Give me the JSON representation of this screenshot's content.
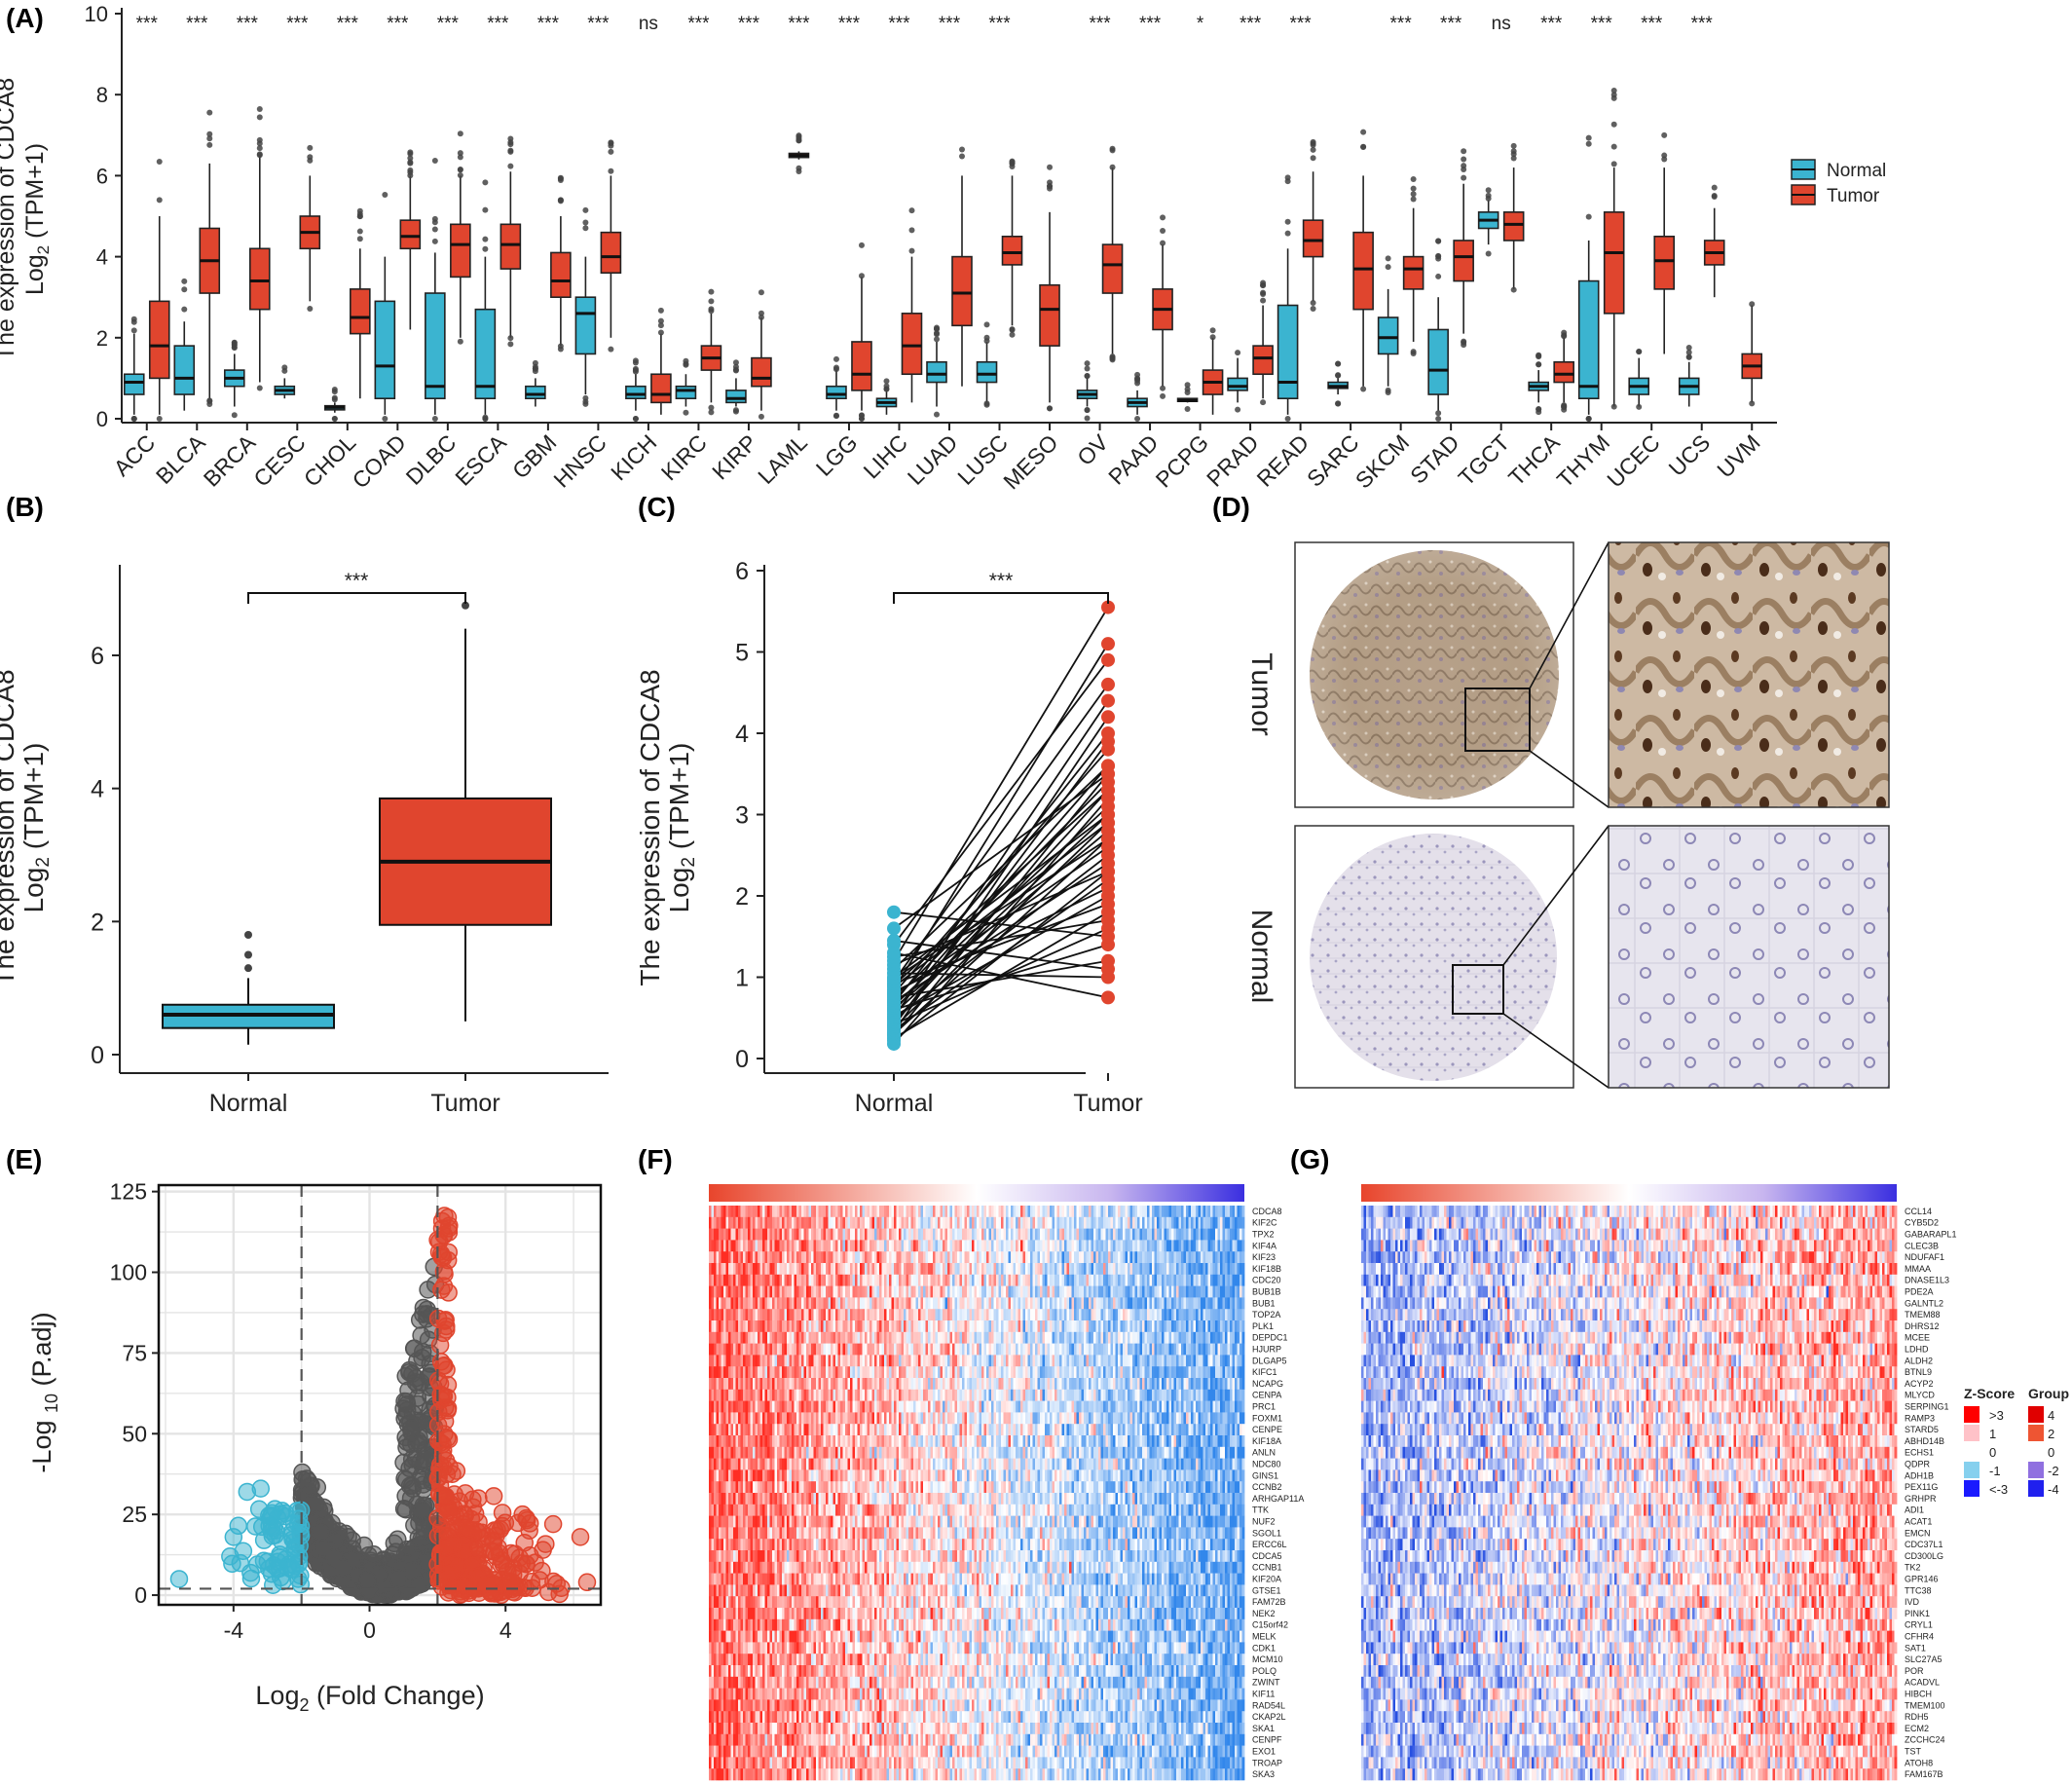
{
  "colors": {
    "normal": "#3bb4d0",
    "tumor": "#e0452e",
    "up": "#e0452e",
    "down": "#3bb4d0",
    "ns": "#555555"
  },
  "chart_data": [
    {
      "id": "A",
      "panel_label": "(A)",
      "type": "box",
      "ylabel_line1": "The expression of CDCA8",
      "ylabel_line2": "Log",
      "ylabel_sub": "2",
      "ylabel_rest": " (TPM+1)",
      "ylim": [
        0,
        10
      ],
      "yticks": [
        "0",
        "2",
        "4",
        "6",
        "8",
        "10"
      ],
      "legend": [
        {
          "name": "Normal"
        },
        {
          "name": "Tumor"
        }
      ],
      "categories": [
        "ACC",
        "BLCA",
        "BRCA",
        "CESC",
        "CHOL",
        "COAD",
        "DLBC",
        "ESCA",
        "GBM",
        "HNSC",
        "KICH",
        "KIRC",
        "KIRP",
        "LAML",
        "LGG",
        "LIHC",
        "LUAD",
        "LUSC",
        "MESO",
        "OV",
        "PAAD",
        "PCPG",
        "PRAD",
        "READ",
        "SARC",
        "SKCM",
        "STAD",
        "TGCT",
        "THCA",
        "THYM",
        "UCEC",
        "UCS",
        "UVM"
      ],
      "significance": [
        "***",
        "***",
        "***",
        "***",
        "***",
        "***",
        "***",
        "***",
        "***",
        "***",
        "ns",
        "***",
        "***",
        "***",
        "***",
        "***",
        "***",
        "***",
        "",
        "***",
        "***",
        "*",
        "***",
        "***",
        "",
        "***",
        "***",
        "ns",
        "***",
        "***",
        "***",
        "***",
        ""
      ],
      "normal": [
        [
          0.1,
          0.6,
          0.9,
          1.1,
          2.1
        ],
        [
          0.2,
          0.6,
          1.0,
          1.8,
          2.4
        ],
        [
          0.3,
          0.8,
          1.0,
          1.2,
          1.6
        ],
        [
          0.5,
          0.6,
          0.7,
          0.8,
          1.0
        ],
        [
          0.15,
          0.22,
          0.28,
          0.32,
          0.4
        ],
        [
          0.1,
          0.5,
          1.3,
          2.9,
          4.0
        ],
        [
          0.1,
          0.5,
          0.8,
          3.1,
          4.1
        ],
        [
          0.1,
          0.5,
          0.8,
          2.7,
          4.0
        ],
        [
          0.3,
          0.5,
          0.6,
          0.8,
          1.0
        ],
        [
          0.6,
          1.6,
          2.6,
          3.0,
          4.0
        ],
        [
          0.2,
          0.5,
          0.6,
          0.8,
          1.1
        ],
        [
          0.3,
          0.5,
          0.7,
          0.8,
          1.1
        ],
        [
          0.3,
          0.4,
          0.5,
          0.7,
          1.0
        ],
        null,
        [
          0.2,
          0.5,
          0.6,
          0.8,
          1.2
        ],
        [
          0.1,
          0.3,
          0.4,
          0.5,
          0.7
        ],
        [
          0.3,
          0.9,
          1.1,
          1.4,
          1.9
        ],
        [
          0.4,
          0.9,
          1.1,
          1.4,
          1.9
        ],
        null,
        [
          0.3,
          0.5,
          0.6,
          0.7,
          1.0
        ],
        [
          0.1,
          0.3,
          0.4,
          0.5,
          0.7
        ],
        [
          0.4,
          0.45,
          0.45,
          0.5,
          0.5
        ],
        [
          0.4,
          0.7,
          0.8,
          1.0,
          1.5
        ],
        [
          0.1,
          0.5,
          0.9,
          2.8,
          4.2
        ],
        [
          0.6,
          0.75,
          0.8,
          0.9,
          1.0
        ],
        [
          0.8,
          1.6,
          2.0,
          2.5,
          3.2
        ],
        [
          0.2,
          0.6,
          1.2,
          2.2,
          3.0
        ],
        [
          4.3,
          4.7,
          4.9,
          5.1,
          5.4
        ],
        [
          0.4,
          0.7,
          0.8,
          0.9,
          1.2
        ],
        [
          0.1,
          0.5,
          0.8,
          3.4,
          4.4
        ],
        [
          0.3,
          0.6,
          0.8,
          1.0,
          1.5
        ],
        [
          0.3,
          0.6,
          0.8,
          1.0,
          1.4
        ],
        null
      ],
      "tumor": [
        [
          0.1,
          1.0,
          1.8,
          2.9,
          5.0
        ],
        [
          0.5,
          3.1,
          3.9,
          4.7,
          6.3
        ],
        [
          0.9,
          2.7,
          3.4,
          4.2,
          6.5
        ],
        [
          2.9,
          4.2,
          4.6,
          5.0,
          6.0
        ],
        [
          0.5,
          2.1,
          2.5,
          3.2,
          4.2
        ],
        [
          2.2,
          4.2,
          4.5,
          4.9,
          6.0
        ],
        [
          2.0,
          3.5,
          4.3,
          4.8,
          6.0
        ],
        [
          2.0,
          3.7,
          4.3,
          4.8,
          6.1
        ],
        [
          1.8,
          3.0,
          3.4,
          4.1,
          5.0
        ],
        [
          2.0,
          3.6,
          4.0,
          4.6,
          6.0
        ],
        [
          0.1,
          0.4,
          0.6,
          1.1,
          2.1
        ],
        [
          0.4,
          1.2,
          1.5,
          1.8,
          2.6
        ],
        [
          0.2,
          0.8,
          1.0,
          1.5,
          2.5
        ],
        [
          6.4,
          6.45,
          6.5,
          6.55,
          6.6
        ],
        [
          0.2,
          0.7,
          1.1,
          1.9,
          3.5
        ],
        [
          0.4,
          1.1,
          1.8,
          2.6,
          4.0
        ],
        [
          0.8,
          2.3,
          3.1,
          4.0,
          6.0
        ],
        [
          2.3,
          3.8,
          4.1,
          4.5,
          6.0
        ],
        [
          0.4,
          1.8,
          2.7,
          3.3,
          5.1
        ],
        [
          1.6,
          3.1,
          3.8,
          4.3,
          6.2
        ],
        [
          0.8,
          2.2,
          2.7,
          3.2,
          4.3
        ],
        [
          0.1,
          0.6,
          0.9,
          1.2,
          2.0
        ],
        [
          0.5,
          1.1,
          1.5,
          1.8,
          2.8
        ],
        [
          2.9,
          4.0,
          4.4,
          4.9,
          6.1
        ],
        [
          0.8,
          2.7,
          3.7,
          4.6,
          6.0
        ],
        [
          1.9,
          3.2,
          3.7,
          4.0,
          5.2
        ],
        [
          2.1,
          3.4,
          4.0,
          4.4,
          5.8
        ],
        [
          3.2,
          4.4,
          4.8,
          5.1,
          6.2
        ],
        [
          0.4,
          0.9,
          1.1,
          1.4,
          2.0
        ],
        [
          0.3,
          2.6,
          4.1,
          5.1,
          6.2
        ],
        [
          1.6,
          3.2,
          3.9,
          4.5,
          6.2
        ],
        [
          3.0,
          3.8,
          4.1,
          4.4,
          5.2
        ],
        [
          0.4,
          1.0,
          1.3,
          1.6,
          2.8
        ]
      ]
    },
    {
      "id": "B",
      "panel_label": "(B)",
      "type": "box",
      "ylabel_line1": "The expression of CDCA8",
      "ylabel_line2": "Log",
      "ylabel_sub": "2",
      "ylabel_rest": " (TPM+1)",
      "ylim": [
        0,
        7
      ],
      "yticks": [
        "0",
        "2",
        "4",
        "6"
      ],
      "categories": [
        "Normal",
        "Tumor"
      ],
      "significance": "***",
      "normal": [
        0.15,
        0.4,
        0.6,
        0.75,
        1.15
      ],
      "tumor": [
        0.5,
        1.95,
        2.9,
        3.85,
        6.4
      ],
      "outliers_normal": [
        1.3,
        1.5,
        1.8
      ],
      "outliers_tumor": [
        6.75
      ]
    },
    {
      "id": "C",
      "panel_label": "(C)",
      "type": "paired",
      "ylabel_line1": "The expression of CDCA8",
      "ylabel_line2": "Log",
      "ylabel_sub": "2",
      "ylabel_rest": " (TPM+1)",
      "ylim": [
        0,
        6
      ],
      "yticks": [
        "0",
        "1",
        "2",
        "3",
        "4",
        "5",
        "6"
      ],
      "categories": [
        "Normal",
        "Tumor"
      ],
      "significance": "***",
      "pairs": [
        [
          0.18,
          3.2
        ],
        [
          0.22,
          2.3
        ],
        [
          0.25,
          1.8
        ],
        [
          0.28,
          3.5
        ],
        [
          0.3,
          2.7
        ],
        [
          0.32,
          4.2
        ],
        [
          0.35,
          2.2
        ],
        [
          0.38,
          2.9
        ],
        [
          0.4,
          3.9
        ],
        [
          0.42,
          1.6
        ],
        [
          0.45,
          3.3
        ],
        [
          0.48,
          2.5
        ],
        [
          0.5,
          4.4
        ],
        [
          0.52,
          2.0
        ],
        [
          0.55,
          3.0
        ],
        [
          0.58,
          3.6
        ],
        [
          0.6,
          1.4
        ],
        [
          0.62,
          2.8
        ],
        [
          0.65,
          3.1
        ],
        [
          0.68,
          4.0
        ],
        [
          0.7,
          2.4
        ],
        [
          0.72,
          3.4
        ],
        [
          0.75,
          1.2
        ],
        [
          0.78,
          2.6
        ],
        [
          0.8,
          3.8
        ],
        [
          0.82,
          2.1
        ],
        [
          0.85,
          5.1
        ],
        [
          0.88,
          2.9
        ],
        [
          0.9,
          3.3
        ],
        [
          0.92,
          1.9
        ],
        [
          0.95,
          4.6
        ],
        [
          0.98,
          2.7
        ],
        [
          1.0,
          3.0
        ],
        [
          1.05,
          1.0
        ],
        [
          1.1,
          3.6
        ],
        [
          1.15,
          2.3
        ],
        [
          1.2,
          5.55
        ],
        [
          1.25,
          1.7
        ],
        [
          1.3,
          0.75
        ],
        [
          1.4,
          4.9
        ],
        [
          1.45,
          1.1
        ],
        [
          1.6,
          3.5
        ],
        [
          1.8,
          1.5
        ]
      ]
    },
    {
      "id": "E",
      "panel_label": "(E)",
      "type": "scatter",
      "xlabel": "Log",
      "xlabel_sub": "2",
      "xlabel_rest": " (Fold Change)",
      "ylabel_pre": "-Log ",
      "ylabel_sub": "10",
      "ylabel_rest": " (P.adj)",
      "xlim": [
        -6.2,
        6.8
      ],
      "ylim": [
        -3,
        127
      ],
      "xticks": [
        "-4",
        "0",
        "4"
      ],
      "yticks": [
        "0",
        "25",
        "50",
        "75",
        "100",
        "125"
      ],
      "thresholds": {
        "x": [
          -2,
          2
        ],
        "y": 2
      }
    },
    {
      "id": "F",
      "panel_label": "(F)",
      "type": "heatmap",
      "genes": [
        "CDCA8",
        "KIF2C",
        "TPX2",
        "KIF4A",
        "KIF23",
        "KIF18B",
        "CDC20",
        "BUB1B",
        "BUB1",
        "TOP2A",
        "PLK1",
        "DEPDC1",
        "HJURP",
        "DLGAP5",
        "KIFC1",
        "NCAPG",
        "CENPA",
        "PRC1",
        "FOXM1",
        "CENPE",
        "KIF18A",
        "ANLN",
        "NDC80",
        "GINS1",
        "CCNB2",
        "ARHGAP11A",
        "TTK",
        "NUF2",
        "SGOL1",
        "ERCC6L",
        "CDCA5",
        "CCNB1",
        "KIF20A",
        "GTSE1",
        "FAM72B",
        "NEK2",
        "C15orf42",
        "MELK",
        "CDK1",
        "MCM10",
        "POLQ",
        "ZWINT",
        "KIF11",
        "RAD54L",
        "CKAP2L",
        "SKA1",
        "CENPF",
        "EXO1",
        "TROAP",
        "SKA3"
      ]
    },
    {
      "id": "G",
      "panel_label": "(G)",
      "type": "heatmap",
      "genes": [
        "CCL14",
        "CYB5D2",
        "GABARAPL1",
        "CLEC3B",
        "NDUFAF1",
        "MMAA",
        "DNASE1L3",
        "PDE2A",
        "GALNTL2",
        "TMEM88",
        "DHRS12",
        "MCEE",
        "LDHD",
        "ALDH2",
        "BTNL9",
        "ACYP2",
        "MLYCD",
        "SERPING1",
        "RAMP3",
        "STARD5",
        "ABHD14B",
        "ECHS1",
        "QDPR",
        "ADH1B",
        "PEX11G",
        "GRHPR",
        "ADI1",
        "ACAT1",
        "EMCN",
        "CDC37L1",
        "CD300LG",
        "TK2",
        "GPR146",
        "TTC38",
        "IVD",
        "PINK1",
        "CRYL1",
        "CFHR4",
        "SAT1",
        "SLC27A5",
        "POR",
        "ACADVL",
        "HIBCH",
        "TMEM100",
        "RDH5",
        "ECM2",
        "ZCCHC24",
        "TST",
        "ATOH8",
        "FAM167B"
      ],
      "legend": {
        "zscore_title": "Z-Score",
        "zscore_labels": [
          ">3",
          "1",
          "0",
          "-1",
          "<-3"
        ],
        "group_title": "Group",
        "group_labels": [
          "4",
          "2",
          "0",
          "-2",
          "-4"
        ]
      }
    }
  ],
  "panel_D": {
    "panel_label": "(D)",
    "row_labels": [
      "Tumor",
      "Normal"
    ]
  }
}
